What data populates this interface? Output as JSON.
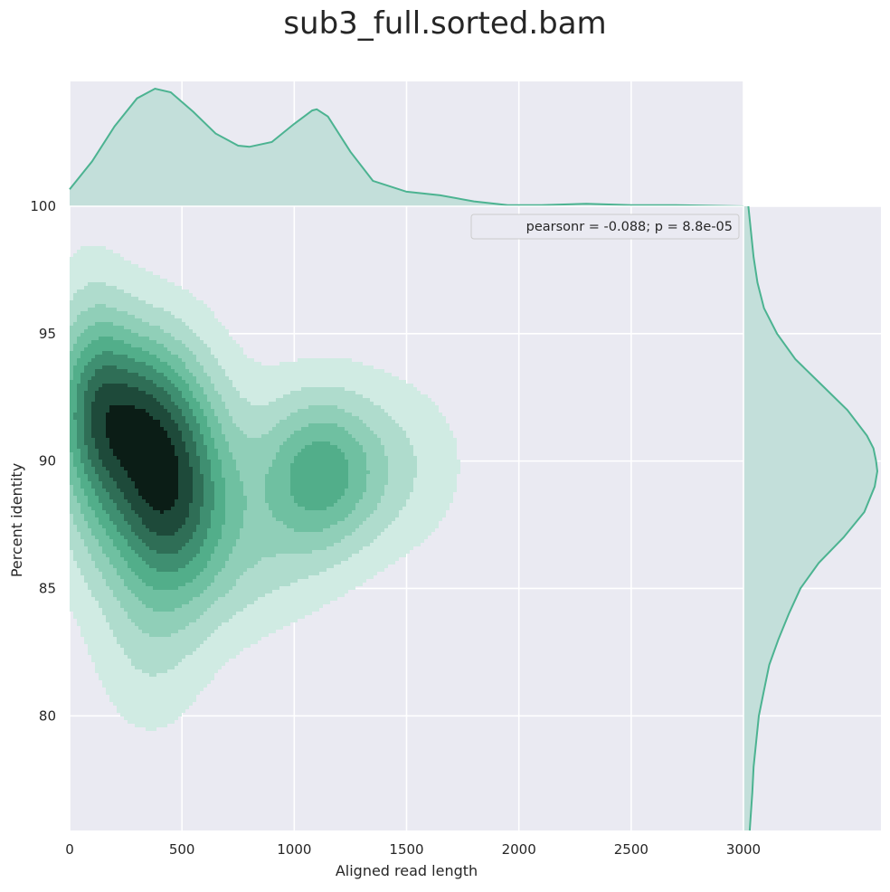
{
  "chart_data": {
    "type": "kde",
    "title": "sub3_full.sorted.bam",
    "xlabel": "Aligned read length",
    "ylabel": "Percent identity",
    "xlim": [
      0,
      3000
    ],
    "ylim": [
      75.5,
      100
    ],
    "xticks": [
      0,
      500,
      1000,
      1500,
      2000,
      2500,
      3000
    ],
    "xtick_labels": [
      "0",
      "500",
      "1000",
      "1500",
      "2000",
      "2500",
      "3000"
    ],
    "yticks": [
      80,
      85,
      90,
      95,
      100
    ],
    "ytick_labels": [
      "80",
      "85",
      "90",
      "95",
      "100"
    ],
    "legend": {
      "text": "pearsonr = -0.088; p = 8.8e-05",
      "placement": "top-right"
    },
    "grid": true,
    "colors": {
      "background": "#eaeaf2",
      "grid": "#ffffff",
      "line": "#4cb391",
      "marginal_fill": "#c3dfda",
      "contour_levels": [
        "#d0ebe3",
        "#afdccd",
        "#90cfb8",
        "#6fc0a1",
        "#52ae8a",
        "#3f8f71",
        "#2f6e56",
        "#1e4a3a",
        "#0b1d16"
      ]
    },
    "density_components": [
      {
        "x": 430,
        "y": 88.6,
        "sx": 210,
        "sy": 3.2,
        "weight": 1.0
      },
      {
        "x": 260,
        "y": 92.3,
        "sx": 200,
        "sy": 2.4,
        "weight": 0.55
      },
      {
        "x": 1100,
        "y": 89.5,
        "sx": 190,
        "sy": 2.2,
        "weight": 0.62
      },
      {
        "x": 90,
        "y": 92.0,
        "sx": 120,
        "sy": 3.4,
        "weight": 0.4
      },
      {
        "x": 1450,
        "y": 89.8,
        "sx": 220,
        "sy": 2.3,
        "weight": 0.18
      },
      {
        "x": 850,
        "y": 86.0,
        "sx": 200,
        "sy": 2.0,
        "weight": 0.15
      },
      {
        "x": 350,
        "y": 82.0,
        "sx": 160,
        "sy": 2.3,
        "weight": 0.12
      }
    ],
    "marginal_x": {
      "x": [
        0,
        100,
        200,
        300,
        380,
        450,
        550,
        650,
        750,
        800,
        900,
        1000,
        1080,
        1100,
        1150,
        1250,
        1350,
        1500,
        1650,
        1800,
        1950,
        2100,
        2300,
        2500,
        2700,
        3000
      ],
      "density": [
        0.14,
        0.37,
        0.66,
        0.89,
        0.97,
        0.94,
        0.78,
        0.6,
        0.5,
        0.49,
        0.53,
        0.68,
        0.79,
        0.8,
        0.74,
        0.45,
        0.21,
        0.12,
        0.09,
        0.04,
        0.01,
        0.01,
        0.02,
        0.01,
        0.01,
        0.0
      ]
    },
    "marginal_y": {
      "y": [
        75.5,
        77,
        78,
        79,
        80,
        81,
        82,
        83,
        84,
        85,
        86,
        87,
        88,
        89,
        89.6,
        90,
        90.5,
        91,
        92,
        93,
        94,
        95,
        96,
        97,
        98,
        99,
        100
      ],
      "density": [
        0.02,
        0.04,
        0.05,
        0.07,
        0.09,
        0.13,
        0.17,
        0.24,
        0.32,
        0.41,
        0.55,
        0.74,
        0.9,
        0.98,
        1.0,
        0.99,
        0.97,
        0.92,
        0.77,
        0.57,
        0.37,
        0.23,
        0.13,
        0.08,
        0.05,
        0.03,
        0.01
      ]
    }
  }
}
